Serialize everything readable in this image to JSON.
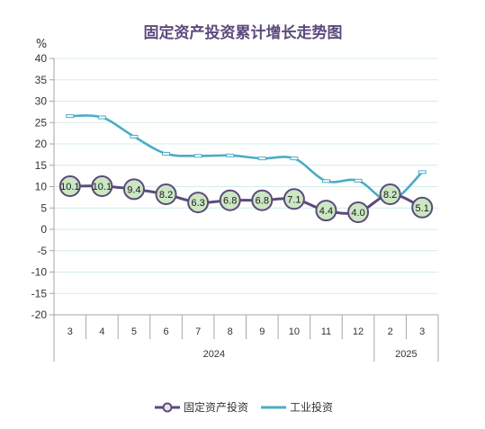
{
  "chart_data": {
    "type": "line",
    "title": "固定资产投资累计增长走势图",
    "ylabel": "%",
    "xlabel": "",
    "ylim": [
      -20,
      40
    ],
    "yticks": [
      40,
      35,
      30,
      25,
      20,
      15,
      10,
      5,
      0,
      -5,
      -10,
      -15,
      -20
    ],
    "categories": [
      "3",
      "4",
      "5",
      "6",
      "7",
      "8",
      "9",
      "10",
      "11",
      "12",
      "2",
      "3"
    ],
    "category_groups": [
      "2024",
      "2024",
      "2024",
      "2024",
      "2024",
      "2024",
      "2024",
      "2024",
      "2024",
      "2024",
      "2025",
      "2025"
    ],
    "series": [
      {
        "name": "固定资产投资",
        "values": [
          10.1,
          10.1,
          9.4,
          8.2,
          6.3,
          6.8,
          6.8,
          7.1,
          4.4,
          4.0,
          8.2,
          5.1
        ],
        "color": "#5b4a7c",
        "marker": "circle",
        "marker_fill": "#cbe7c3",
        "data_labels": true
      },
      {
        "name": "工业投资",
        "values": [
          26.5,
          26.2,
          21.7,
          17.7,
          17.2,
          17.3,
          16.6,
          16.6,
          11.3,
          11.4,
          6.7,
          13.4
        ],
        "color": "#4bacc6",
        "marker": "dash",
        "data_labels": false
      }
    ],
    "grid": true,
    "legend": "bottom"
  },
  "colors": {
    "gridline": "#d3ecee",
    "axis": "#a6a6a6",
    "title": "#5b4b7d"
  }
}
